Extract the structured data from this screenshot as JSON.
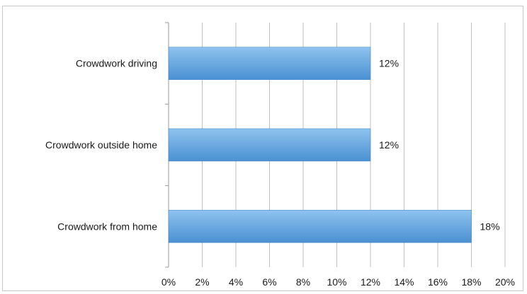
{
  "chart_data": {
    "type": "bar",
    "orientation": "horizontal",
    "categories": [
      "Crowdwork driving",
      "Crowdwork outside home",
      "Crowdwork from home"
    ],
    "values": [
      12,
      12,
      18
    ],
    "data_labels": [
      "12%",
      "12%",
      "18%"
    ],
    "x_ticks": [
      "0%",
      "2%",
      "4%",
      "6%",
      "8%",
      "10%",
      "12%",
      "14%",
      "16%",
      "18%",
      "20%"
    ],
    "xlim": [
      0,
      20
    ],
    "title": "",
    "xlabel": "",
    "ylabel": "",
    "grid": "vertical",
    "legend": "none",
    "bar_color_light": "#8ec3ee",
    "bar_color_dark": "#4a90d2",
    "grid_color": "#bfbfbf"
  }
}
